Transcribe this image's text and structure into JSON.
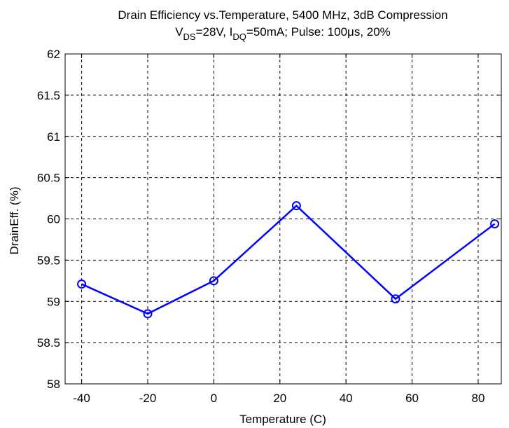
{
  "chart_data": {
    "type": "line",
    "title_line1": "Drain Efficiency vs.Temperature, 5400 MHz, 3dB Compression",
    "title_line2": {
      "v": "V",
      "v_sub": "DS",
      "v_val": "=28V, I",
      "i_sub": "DQ",
      "rest": "=50mA; Pulse: 100μs, 20%"
    },
    "xlabel": "Temperature (C)",
    "ylabel": "DrainEff. (%)",
    "xlim": [
      -45,
      87
    ],
    "ylim": [
      58,
      62
    ],
    "xticks": [
      -40,
      -20,
      0,
      20,
      40,
      60,
      80
    ],
    "xtick_labels": [
      "-40",
      "-20",
      "0",
      "20",
      "40",
      "60",
      "80"
    ],
    "yticks": [
      58,
      58.5,
      59,
      59.5,
      60,
      60.5,
      61,
      61.5,
      62
    ],
    "ytick_labels": [
      "58",
      "58.5",
      "59",
      "59.5",
      "60",
      "60.5",
      "61",
      "61.5",
      "62"
    ],
    "grid": true,
    "series": [
      {
        "x": [
          -40,
          -20,
          0,
          25,
          55,
          85
        ],
        "y": [
          59.21,
          58.85,
          59.25,
          60.16,
          59.03,
          59.94
        ],
        "color": "#0000ff",
        "marker": "circle"
      }
    ]
  }
}
